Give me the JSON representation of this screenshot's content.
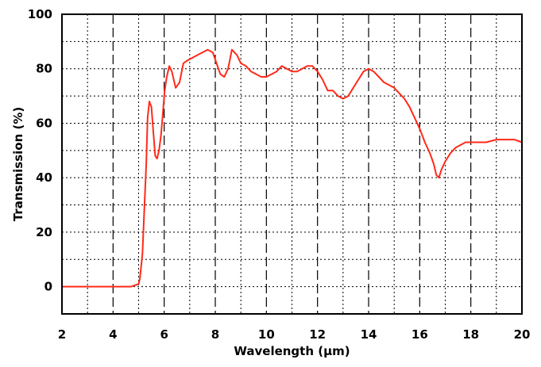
{
  "chart_data": {
    "type": "line",
    "title": "",
    "xlabel": "Wavelength (µm)",
    "ylabel": "Transmission (%)",
    "xlim": [
      2,
      20
    ],
    "ylim": [
      -10,
      100
    ],
    "x_ticks": [
      2,
      4,
      6,
      8,
      10,
      12,
      14,
      16,
      18,
      20
    ],
    "y_ticks": [
      0,
      20,
      40,
      60,
      80,
      100
    ],
    "grid": true,
    "grid_minor_x": 1,
    "grid_minor_y": 10,
    "legend": "none",
    "series_color": "#ff2a1a",
    "series": [
      {
        "x": [
          2,
          3,
          4,
          4.7,
          4.85,
          5.0,
          5.05,
          5.15,
          5.22,
          5.3,
          5.35,
          5.42,
          5.5,
          5.58,
          5.65,
          5.72,
          5.8,
          5.88,
          5.95,
          6.02,
          6.1,
          6.2,
          6.3,
          6.45,
          6.6,
          6.75,
          6.9,
          7.1,
          7.3,
          7.5,
          7.7,
          7.9,
          8.05,
          8.2,
          8.35,
          8.5,
          8.65,
          8.75,
          8.85,
          9.0,
          9.2,
          9.4,
          9.6,
          9.8,
          10.0,
          10.2,
          10.4,
          10.6,
          10.8,
          11.0,
          11.2,
          11.4,
          11.6,
          11.8,
          12.0,
          12.2,
          12.4,
          12.6,
          12.8,
          13.0,
          13.2,
          13.4,
          13.6,
          13.8,
          14.0,
          14.2,
          14.4,
          14.6,
          14.8,
          15.0,
          15.2,
          15.4,
          15.6,
          15.8,
          16.0,
          16.2,
          16.4,
          16.55,
          16.65,
          16.75,
          16.85,
          17.0,
          17.2,
          17.4,
          17.6,
          17.8,
          18.0,
          18.3,
          18.6,
          19.0,
          19.4,
          19.7,
          20.0
        ],
        "y": [
          0,
          0,
          0,
          0,
          0.5,
          1,
          3,
          12,
          28,
          45,
          62,
          68,
          66,
          56,
          48,
          47,
          50,
          56,
          64,
          72,
          77,
          81,
          79,
          73,
          75,
          82,
          83,
          84,
          85,
          86,
          87,
          86,
          82,
          78,
          77,
          80,
          87,
          86,
          85,
          82,
          81,
          79,
          78,
          77,
          77,
          78,
          79,
          81,
          80,
          79,
          79,
          80,
          81,
          81,
          79,
          76,
          72,
          72,
          70,
          69,
          70,
          73,
          76,
          79,
          80,
          79,
          77,
          75,
          74,
          73,
          71,
          69,
          66,
          62,
          58,
          53,
          49,
          45,
          41,
          40,
          43,
          46,
          49,
          51,
          52,
          53,
          53,
          53,
          53,
          54,
          54,
          54,
          53
        ]
      }
    ]
  }
}
